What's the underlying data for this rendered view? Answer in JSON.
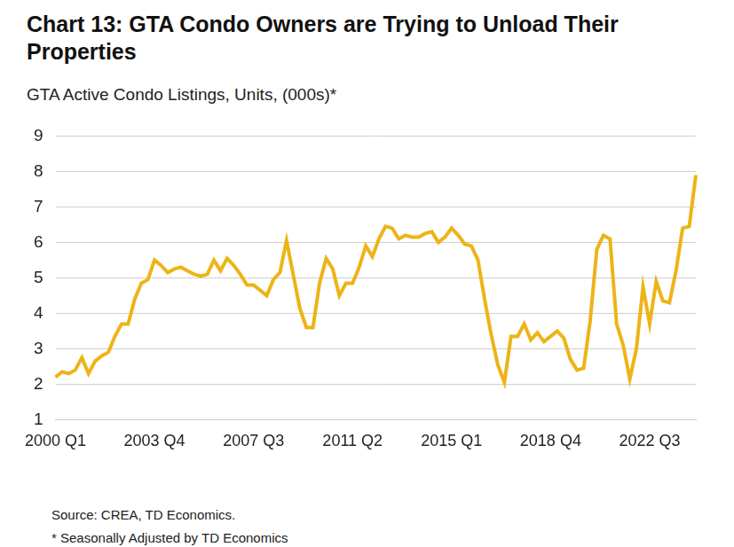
{
  "chart_data": {
    "type": "line",
    "title": "Chart 13: GTA Condo Owners are Trying to Unload Their Properties",
    "subtitle": "GTA Active Condo Listings, Units, (000s)*",
    "notes": [
      "Source: CREA, TD Economics.",
      "* Seasonally Adjusted by TD Economics"
    ],
    "categories": [
      "2000 Q1",
      null,
      null,
      null,
      null,
      null,
      null,
      null,
      null,
      null,
      null,
      null,
      null,
      null,
      null,
      "2003 Q4",
      null,
      null,
      null,
      null,
      null,
      null,
      null,
      null,
      null,
      null,
      null,
      null,
      null,
      null,
      "2007 Q3",
      null,
      null,
      null,
      null,
      null,
      null,
      null,
      null,
      null,
      null,
      null,
      null,
      null,
      null,
      "2011 Q2",
      null,
      null,
      null,
      null,
      null,
      null,
      null,
      null,
      null,
      null,
      null,
      null,
      null,
      null,
      "2015 Q1",
      null,
      null,
      null,
      null,
      null,
      null,
      null,
      null,
      null,
      null,
      null,
      null,
      null,
      null,
      "2018 Q4",
      null,
      null,
      null,
      null,
      null,
      null,
      null,
      null,
      null,
      null,
      null,
      null,
      null,
      null,
      "2022 Q3",
      null,
      null,
      null,
      null,
      null,
      null,
      null
    ],
    "values": [
      2.2,
      2.35,
      2.3,
      2.4,
      2.75,
      2.3,
      2.65,
      2.8,
      2.9,
      3.35,
      3.7,
      3.7,
      4.4,
      4.85,
      4.95,
      5.5,
      5.35,
      5.15,
      5.25,
      5.3,
      5.2,
      5.1,
      5.05,
      5.1,
      5.5,
      5.2,
      5.55,
      5.35,
      5.1,
      4.8,
      4.8,
      4.65,
      4.5,
      4.95,
      5.15,
      6.05,
      5.1,
      4.15,
      3.6,
      3.6,
      4.85,
      5.55,
      5.25,
      4.5,
      4.85,
      4.85,
      5.3,
      5.9,
      5.6,
      6.1,
      6.45,
      6.4,
      6.1,
      6.2,
      6.15,
      6.15,
      6.25,
      6.3,
      6.0,
      6.15,
      6.4,
      6.2,
      5.95,
      5.9,
      5.5,
      4.4,
      3.4,
      2.55,
      2.05,
      3.35,
      3.35,
      3.7,
      3.25,
      3.45,
      3.2,
      3.35,
      3.5,
      3.3,
      2.7,
      2.4,
      2.45,
      3.8,
      5.8,
      6.2,
      6.1,
      3.7,
      3.1,
      2.15,
      3.0,
      4.75,
      3.7,
      4.9,
      4.35,
      4.3,
      5.2,
      6.4,
      6.45,
      7.9
    ],
    "color": "#EDB418",
    "ylim": [
      1,
      9
    ],
    "yticks": [
      1,
      2,
      3,
      4,
      5,
      6,
      7,
      8,
      9
    ],
    "grid": true,
    "legend": false
  }
}
